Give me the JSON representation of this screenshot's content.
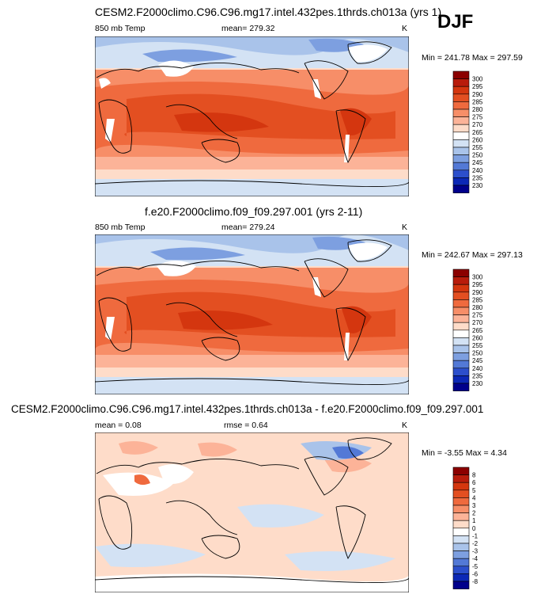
{
  "season": "DJF",
  "chart_data": [
    {
      "type": "heatmap",
      "title": "CESM2.F2000climo.C96.C96.mg17.intel.432pes.1thrds.ch013a (yrs 1)",
      "variable": "850 mb Temp",
      "mean_text": "mean= 279.32",
      "units": "K",
      "minmax_text": "Min = 241.78 Max = 297.59",
      "levels": [
        "300",
        "295",
        "290",
        "285",
        "280",
        "275",
        "270",
        "265",
        "260",
        "255",
        "250",
        "245",
        "240",
        "235",
        "230"
      ],
      "colors": [
        "#8b0000",
        "#b81c0c",
        "#d4360f",
        "#e34f21",
        "#ef6a3e",
        "#f78e68",
        "#fcb398",
        "#fedcc9",
        "#ffffff",
        "#d3e2f4",
        "#a9c3ea",
        "#7d9fe0",
        "#5379d6",
        "#2c4fcc",
        "#0c28b6",
        "#00008b"
      ]
    },
    {
      "type": "heatmap",
      "title": "f.e20.F2000climo.f09_f09.297.001 (yrs 2-11)",
      "variable": "850 mb Temp",
      "mean_text": "mean= 279.24",
      "units": "K",
      "minmax_text": "Min = 242.67 Max = 297.13",
      "levels": [
        "300",
        "295",
        "290",
        "285",
        "280",
        "275",
        "270",
        "265",
        "260",
        "255",
        "250",
        "245",
        "240",
        "235",
        "230"
      ],
      "colors": [
        "#8b0000",
        "#b81c0c",
        "#d4360f",
        "#e34f21",
        "#ef6a3e",
        "#f78e68",
        "#fcb398",
        "#fedcc9",
        "#ffffff",
        "#d3e2f4",
        "#a9c3ea",
        "#7d9fe0",
        "#5379d6",
        "#2c4fcc",
        "#0c28b6",
        "#00008b"
      ]
    },
    {
      "type": "heatmap",
      "title": "CESM2.F2000climo.C96.C96.mg17.intel.432pes.1thrds.ch013a - f.e20.F2000climo.f09_f09.297.001",
      "variable": "",
      "mean_text": "mean =   0.08",
      "rmse_text": "rmse =   0.64",
      "units": "K",
      "minmax_text": "Min =  -3.55 Max =   4.34",
      "levels": [
        "8",
        "6",
        "5",
        "4",
        "3",
        "2",
        "1",
        "0",
        "-1",
        "-2",
        "-3",
        "-4",
        "-5",
        "-6",
        "-8"
      ],
      "colors": [
        "#8b0000",
        "#b81c0c",
        "#d4360f",
        "#e34f21",
        "#ef6a3e",
        "#f78e68",
        "#fcb398",
        "#fedcc9",
        "#ffffff",
        "#d3e2f4",
        "#a9c3ea",
        "#7d9fe0",
        "#5379d6",
        "#2c4fcc",
        "#0c28b6",
        "#00008b"
      ]
    }
  ]
}
